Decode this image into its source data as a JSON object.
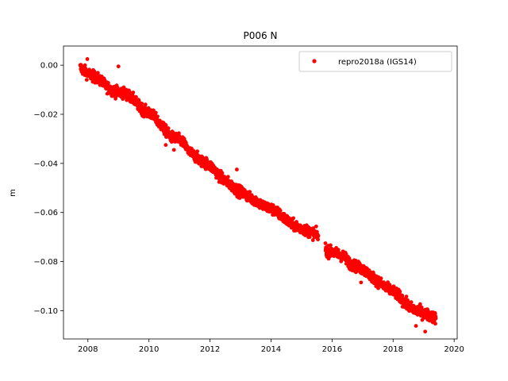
{
  "chart_data": {
    "type": "scatter",
    "title": "P006 N",
    "xlabel": "",
    "ylabel": "m",
    "xlim": [
      2007.2,
      2020.1
    ],
    "ylim": [
      -0.1115,
      0.0078
    ],
    "xticks": [
      2008,
      2010,
      2012,
      2014,
      2016,
      2018,
      2020
    ],
    "xtick_labels": [
      "2008",
      "2010",
      "2012",
      "2014",
      "2016",
      "2018",
      "2020"
    ],
    "yticks": [
      0.0,
      -0.02,
      -0.04,
      -0.06,
      -0.08,
      -0.1
    ],
    "ytick_labels": [
      "0.00",
      "−0.02",
      "−0.04",
      "−0.06",
      "−0.08",
      "−0.10"
    ],
    "grid": false,
    "legend": {
      "position": "top-right"
    },
    "series": [
      {
        "name": "repro2018a (IGS14)",
        "color": "#ff0000",
        "marker": "circle",
        "x": [
          2007.75,
          2007.85,
          2007.95,
          2008.1,
          2008.25,
          2008.4,
          2008.55,
          2008.75,
          2008.95,
          2009.1,
          2009.3,
          2009.5,
          2009.7,
          2009.9,
          2010.1,
          2010.3,
          2010.5,
          2010.7,
          2010.9,
          2011.1,
          2011.3,
          2011.5,
          2011.7,
          2011.9,
          2012.1,
          2012.3,
          2012.5,
          2012.7,
          2012.9,
          2013.1,
          2013.3,
          2013.5,
          2013.7,
          2013.9,
          2014.1,
          2014.3,
          2014.5,
          2014.7,
          2014.9,
          2015.1,
          2015.3,
          2015.5,
          2015.85,
          2016.0,
          2016.2,
          2016.4,
          2016.6,
          2016.8,
          2017.0,
          2017.2,
          2017.4,
          2017.6,
          2017.8,
          2018.0,
          2018.2,
          2018.4,
          2018.6,
          2018.8,
          2019.0,
          2019.2,
          2019.4
        ],
        "y": [
          -0.001,
          -0.002,
          -0.003,
          -0.004,
          -0.005,
          -0.006,
          -0.008,
          -0.01,
          -0.011,
          -0.011,
          -0.012,
          -0.014,
          -0.017,
          -0.019,
          -0.02,
          -0.023,
          -0.026,
          -0.029,
          -0.03,
          -0.031,
          -0.035,
          -0.037,
          -0.039,
          -0.04,
          -0.042,
          -0.045,
          -0.047,
          -0.049,
          -0.051,
          -0.052,
          -0.054,
          -0.055,
          -0.057,
          -0.058,
          -0.059,
          -0.061,
          -0.063,
          -0.065,
          -0.066,
          -0.067,
          -0.068,
          -0.069,
          -0.076,
          -0.076,
          -0.077,
          -0.078,
          -0.081,
          -0.082,
          -0.083,
          -0.085,
          -0.087,
          -0.089,
          -0.091,
          -0.092,
          -0.094,
          -0.097,
          -0.099,
          -0.1,
          -0.101,
          -0.102,
          -0.103
        ]
      }
    ],
    "outliers": {
      "x": [
        2007.98,
        2009.0,
        2010.55,
        2010.82,
        2011.6,
        2012.88,
        2015.9,
        2016.55,
        2016.95,
        2018.75,
        2019.05
      ],
      "y": [
        0.0025,
        -0.0005,
        -0.0325,
        -0.0345,
        -0.0375,
        -0.0425,
        -0.077,
        -0.082,
        -0.0885,
        -0.1062,
        -0.1085
      ]
    }
  }
}
